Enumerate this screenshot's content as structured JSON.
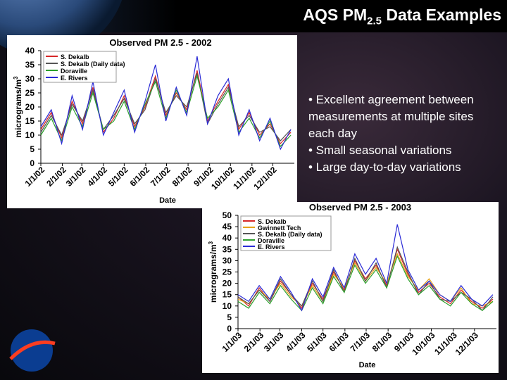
{
  "title": {
    "main": "AQS PM",
    "sub": "2.5",
    "rest": " Data Examples"
  },
  "bullets": [
    "• Excellent agreement between measurements at multiple sites each day",
    "• Small seasonal variations",
    "• Large day-to-day variations"
  ],
  "chart_data": [
    {
      "type": "line",
      "title": "Observed PM 2.5 - 2002",
      "xlabel": "Date",
      "ylabel": "micrograms/m",
      "ylabel_sup": "3",
      "x": [
        0,
        15,
        30,
        45,
        60,
        75,
        90,
        105,
        120,
        135,
        150,
        165,
        180,
        195,
        210,
        225,
        240,
        255,
        270,
        285,
        300,
        315,
        330,
        345,
        360
      ],
      "xlim": [
        0,
        365
      ],
      "xticks": [
        {
          "value": 0,
          "label": "1/1/02"
        },
        {
          "value": 31,
          "label": "2/1/02"
        },
        {
          "value": 59,
          "label": "3/1/02"
        },
        {
          "value": 90,
          "label": "4/1/02"
        },
        {
          "value": 120,
          "label": "5/1/02"
        },
        {
          "value": 151,
          "label": "6/1/02"
        },
        {
          "value": 181,
          "label": "7/1/02"
        },
        {
          "value": 212,
          "label": "8/1/02"
        },
        {
          "value": 243,
          "label": "9/1/02"
        },
        {
          "value": 273,
          "label": "10/1/02"
        },
        {
          "value": 304,
          "label": "11/1/02"
        },
        {
          "value": 334,
          "label": "12/1/02"
        }
      ],
      "ylim": [
        0,
        40
      ],
      "yticks": [
        0,
        5,
        10,
        15,
        20,
        25,
        30,
        35,
        40
      ],
      "series": [
        {
          "name": "S. Dekalb",
          "color": "#d62728",
          "values": [
            12,
            18,
            9,
            22,
            14,
            27,
            11,
            16,
            24,
            13,
            20,
            31,
            17,
            25,
            19,
            33,
            15,
            22,
            28,
            12,
            18,
            10,
            14,
            7,
            11
          ]
        },
        {
          "name": "S. Dekalb (Daily data)",
          "color": "#555555",
          "values": [
            11,
            17,
            10,
            21,
            15,
            26,
            12,
            17,
            23,
            14,
            19,
            30,
            18,
            24,
            20,
            32,
            14,
            21,
            27,
            13,
            17,
            11,
            13,
            8,
            12
          ]
        },
        {
          "name": "Doraville",
          "color": "#2ca02c",
          "values": [
            10,
            16,
            8,
            20,
            13,
            25,
            12,
            15,
            22,
            12,
            21,
            29,
            16,
            26,
            18,
            31,
            16,
            20,
            26,
            11,
            16,
            9,
            15,
            6,
            10
          ]
        },
        {
          "name": "E. Rivers",
          "color": "#2b2bd6",
          "values": [
            13,
            19,
            7,
            24,
            12,
            29,
            10,
            18,
            26,
            11,
            22,
            35,
            15,
            27,
            17,
            38,
            14,
            24,
            30,
            10,
            19,
            8,
            16,
            5,
            12
          ]
        }
      ]
    },
    {
      "type": "line",
      "title": "Observed PM 2.5 - 2003",
      "xlabel": "Date",
      "ylabel": "micrograms/m",
      "ylabel_sup": "3",
      "x": [
        0,
        15,
        30,
        45,
        60,
        75,
        90,
        105,
        120,
        135,
        150,
        165,
        180,
        195,
        210,
        225,
        240,
        255,
        270,
        285,
        300,
        315,
        330,
        345,
        360
      ],
      "xlim": [
        0,
        365
      ],
      "xticks": [
        {
          "value": 0,
          "label": "1/1/03"
        },
        {
          "value": 31,
          "label": "2/1/03"
        },
        {
          "value": 59,
          "label": "3/1/03"
        },
        {
          "value": 90,
          "label": "4/1/03"
        },
        {
          "value": 120,
          "label": "5/1/03"
        },
        {
          "value": 151,
          "label": "6/1/03"
        },
        {
          "value": 181,
          "label": "7/1/03"
        },
        {
          "value": 212,
          "label": "8/1/03"
        },
        {
          "value": 243,
          "label": "9/1/03"
        },
        {
          "value": 273,
          "label": "10/1/03"
        },
        {
          "value": 304,
          "label": "11/1/03"
        },
        {
          "value": 334,
          "label": "12/1/03"
        }
      ],
      "ylim": [
        0,
        50
      ],
      "yticks": [
        0,
        5,
        10,
        15,
        20,
        25,
        30,
        35,
        40,
        45,
        50
      ],
      "series": [
        {
          "name": "S. Dekalb",
          "color": "#d62728",
          "values": [
            14,
            10,
            18,
            12,
            21,
            15,
            9,
            20,
            13,
            25,
            17,
            30,
            22,
            28,
            19,
            35,
            24,
            16,
            20,
            14,
            11,
            17,
            12,
            9,
            13
          ]
        },
        {
          "name": "Gwinnett Tech",
          "color": "#e8a317",
          "values": [
            13,
            11,
            17,
            13,
            20,
            14,
            10,
            19,
            12,
            24,
            18,
            29,
            21,
            27,
            20,
            33,
            23,
            17,
            22,
            15,
            12,
            18,
            11,
            10,
            12
          ]
        },
        {
          "name": "S. Dekalb (Daily data)",
          "color": "#555555",
          "values": [
            14,
            11,
            17,
            12,
            22,
            15,
            10,
            21,
            12,
            26,
            16,
            31,
            21,
            29,
            18,
            36,
            25,
            15,
            21,
            13,
            12,
            16,
            13,
            8,
            14
          ]
        },
        {
          "name": "Doraville",
          "color": "#2ca02c",
          "values": [
            12,
            9,
            16,
            11,
            19,
            13,
            8,
            18,
            11,
            23,
            16,
            28,
            20,
            26,
            18,
            32,
            22,
            15,
            19,
            13,
            10,
            16,
            11,
            8,
            12
          ]
        },
        {
          "name": "E. Rivers",
          "color": "#2b2bd6",
          "values": [
            15,
            12,
            19,
            13,
            23,
            16,
            8,
            22,
            14,
            27,
            18,
            33,
            24,
            31,
            20,
            46,
            26,
            17,
            21,
            15,
            12,
            19,
            13,
            10,
            15
          ]
        }
      ]
    }
  ]
}
